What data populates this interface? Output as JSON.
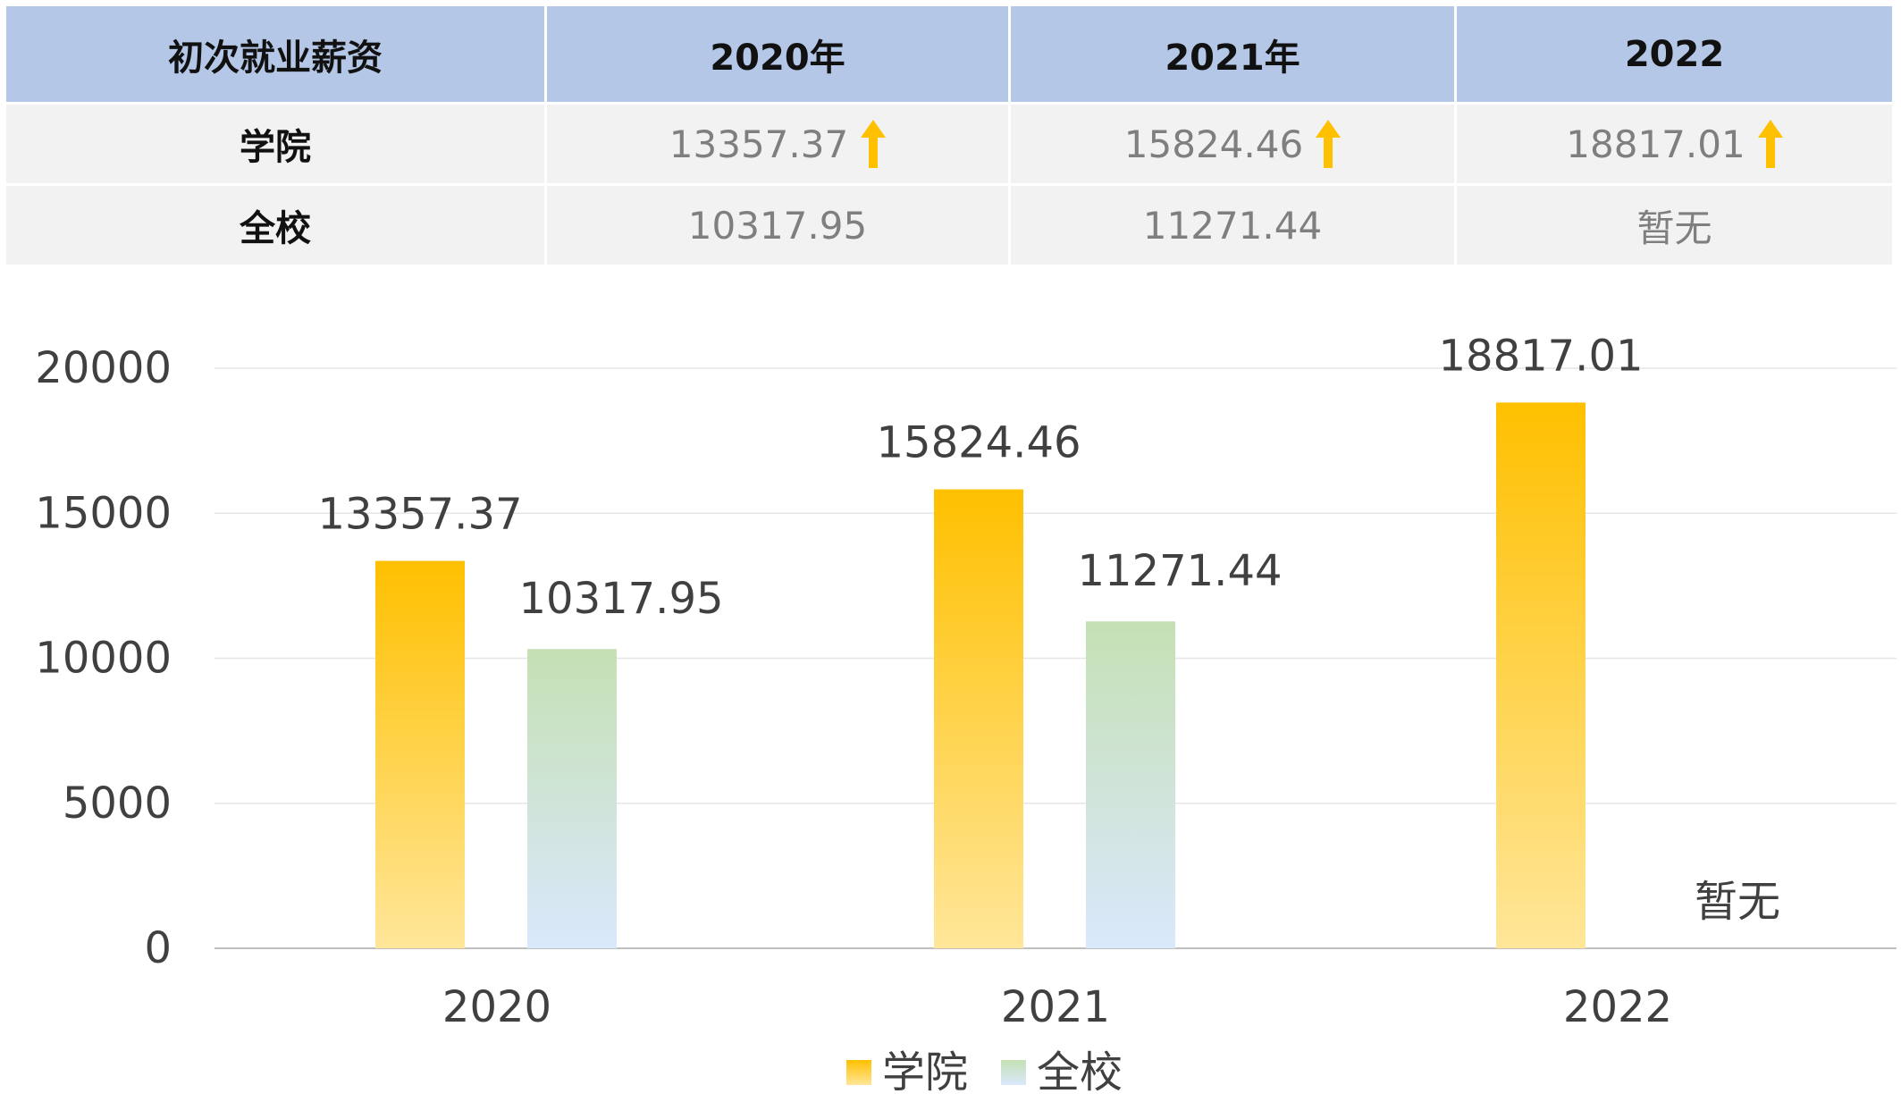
{
  "table": {
    "header": [
      "初次就业薪资",
      "2020年",
      "2021年",
      "2022"
    ],
    "rows": [
      {
        "label": "学院",
        "values": [
          "13357.37",
          "15824.46",
          "18817.01"
        ],
        "trend": [
          "up",
          "up",
          "up"
        ]
      },
      {
        "label": "全校",
        "values": [
          "10317.95",
          "11271.44",
          "暂无"
        ],
        "trend": [
          "",
          "",
          ""
        ]
      }
    ]
  },
  "colors": {
    "header_bg": "#b4c7e7",
    "row_bg": "#f2f2f2",
    "arrow": "#ffc000",
    "series_college": "#ffc000",
    "series_school_top": "#c5e0b4",
    "series_school_bottom": "#dae8fc"
  },
  "icons": {
    "trend_up": "arrow-up-icon"
  },
  "chart_data": {
    "type": "bar",
    "categories": [
      "2020",
      "2021",
      "2022"
    ],
    "series": [
      {
        "name": "学院",
        "values": [
          13357.37,
          15824.46,
          18817.01
        ],
        "labels": [
          "13357.37",
          "15824.46",
          "18817.01"
        ]
      },
      {
        "name": "全校",
        "values": [
          10317.95,
          11271.44,
          null
        ],
        "labels": [
          "10317.95",
          "11271.44",
          "暂无"
        ]
      }
    ],
    "ylim": [
      0,
      20000
    ],
    "yticks": [
      0,
      5000,
      10000,
      15000,
      20000
    ],
    "grid": true,
    "legend": "bottom"
  }
}
